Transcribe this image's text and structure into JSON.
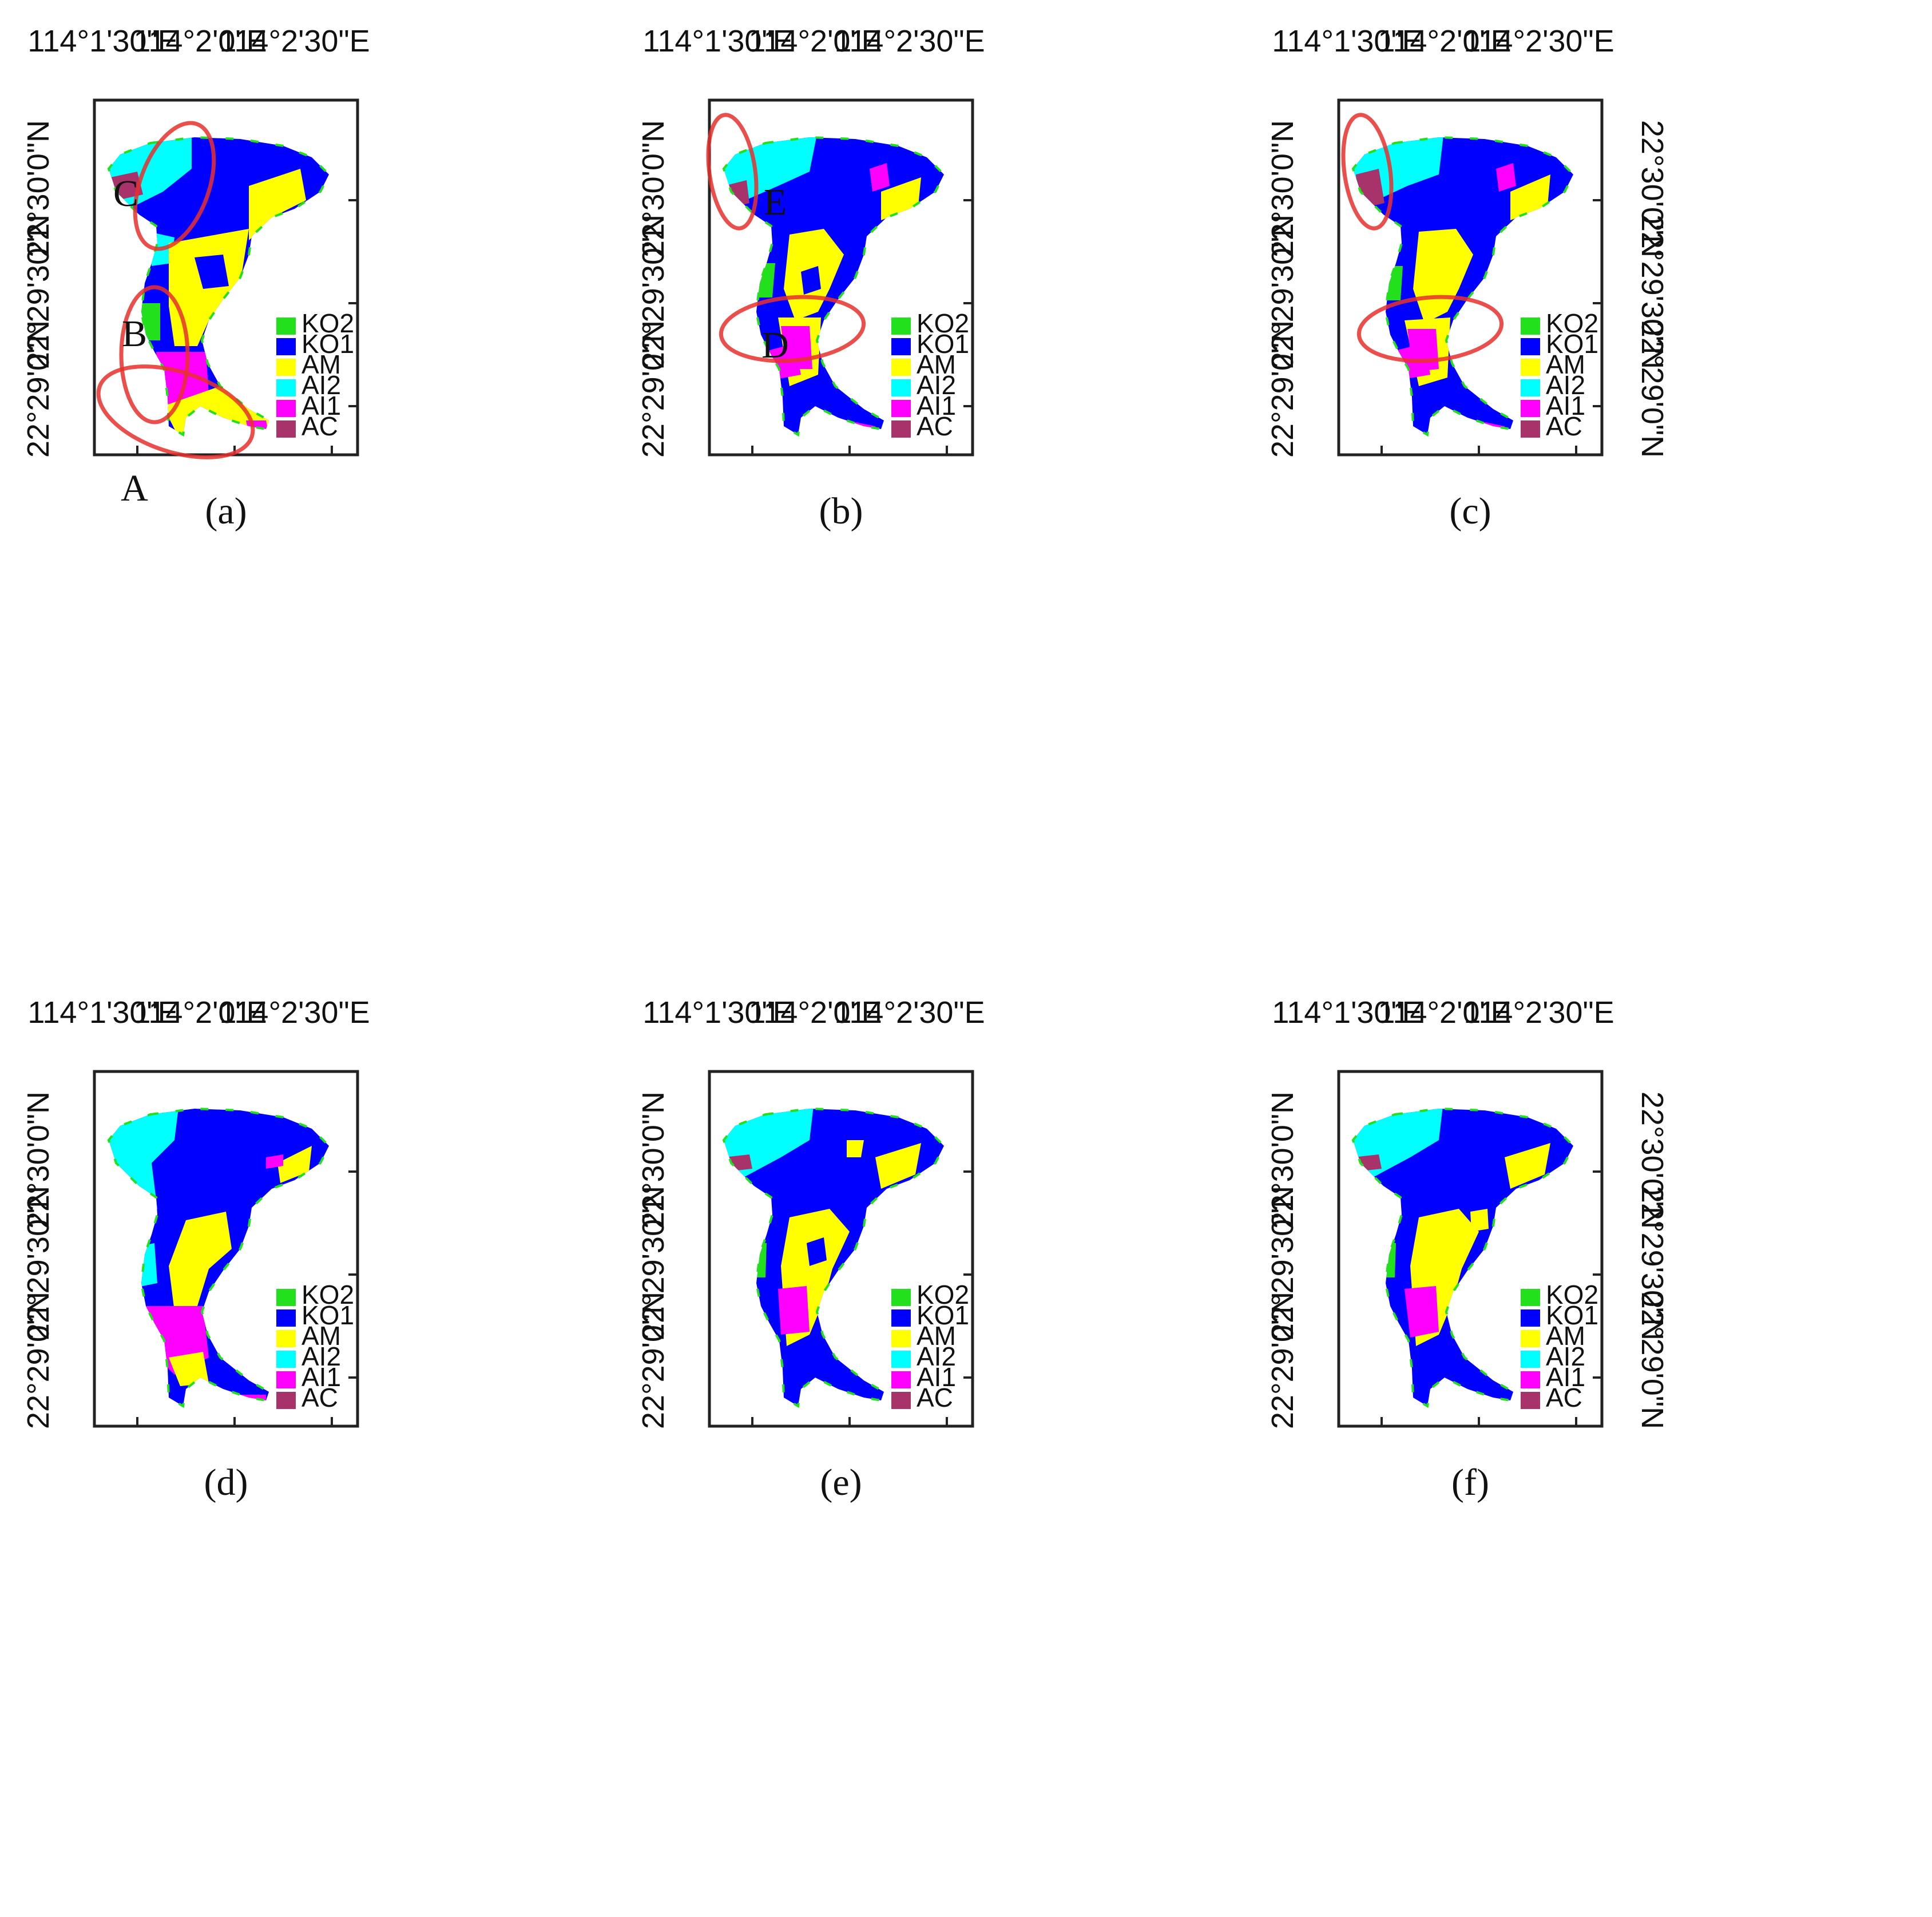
{
  "legend_classes": [
    {
      "code": "KO2",
      "color": "#22e01c"
    },
    {
      "code": "KO1",
      "color": "#0000ff"
    },
    {
      "code": "AM",
      "color": "#ffff00"
    },
    {
      "code": "AI2",
      "color": "#00ffff"
    },
    {
      "code": "AI1",
      "color": "#ff00ff"
    },
    {
      "code": "AC",
      "color": "#a8336a"
    }
  ],
  "longitude_labels": [
    "114°1'30\"E",
    "114°2'0\"E",
    "114°2'30\"E"
  ],
  "latitude_labels": [
    "22°30'0\"N",
    "22°29'30\"N",
    "22°29'0\"N"
  ],
  "highlight_color": "#e8302b",
  "panels": [
    {
      "caption": "(a)",
      "markers": [
        "C",
        "B",
        "A"
      ]
    },
    {
      "caption": "(b)",
      "markers": [
        "E",
        "D"
      ]
    },
    {
      "caption": "(c)",
      "markers": []
    },
    {
      "caption": "(d)",
      "markers": []
    },
    {
      "caption": "(e)",
      "markers": []
    },
    {
      "caption": "(f)",
      "markers": []
    }
  ]
}
